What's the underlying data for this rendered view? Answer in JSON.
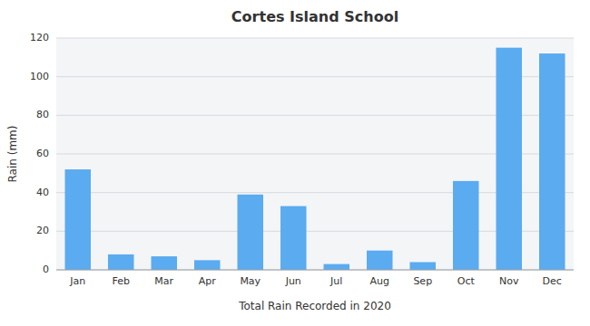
{
  "chart_data": {
    "type": "bar",
    "title": "Cortes Island School",
    "xlabel": "Total Rain Recorded in 2020",
    "ylabel": "Rain (mm)",
    "categories": [
      "Jan",
      "Feb",
      "Mar",
      "Apr",
      "May",
      "Jun",
      "Jul",
      "Aug",
      "Sep",
      "Oct",
      "Nov",
      "Dec"
    ],
    "values": [
      52,
      8,
      7,
      5,
      39,
      33,
      3,
      10,
      4,
      46,
      115,
      112
    ],
    "color": "#5aabf0",
    "ylim": [
      0,
      120
    ],
    "yticks": [
      0,
      20,
      40,
      60,
      80,
      100,
      120
    ],
    "grid": true
  }
}
